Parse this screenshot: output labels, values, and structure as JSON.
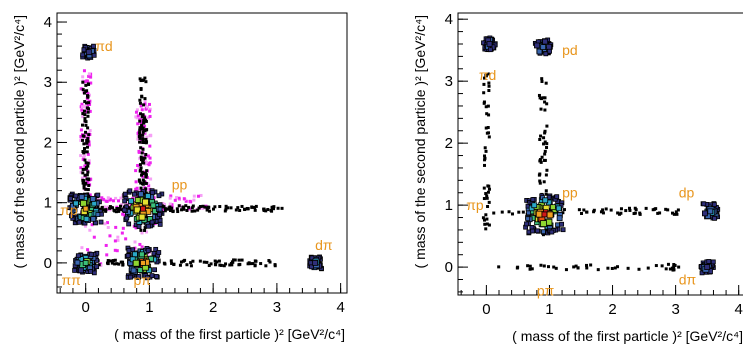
{
  "chart_data": [
    {
      "type": "heatmap",
      "xlabel": "( mass of the first particle )",
      "ylabel": "( mass of the second particle )",
      "unit_label": "[GeV²/c⁴]",
      "xlim": [
        -0.45,
        4.1
      ],
      "ylim": [
        -0.5,
        4.15
      ],
      "x_ticks": [
        "0",
        "1",
        "2",
        "3",
        "4"
      ],
      "y_ticks": [
        "0",
        "1",
        "2",
        "3",
        "4"
      ],
      "labels": [
        {
          "text": "πd",
          "x": 0.15,
          "y": 3.6
        },
        {
          "text": "pp",
          "x": 1.35,
          "y": 1.3
        },
        {
          "text": "πp",
          "x": -0.4,
          "y": 0.88
        },
        {
          "text": "dπ",
          "x": 3.6,
          "y": 0.3
        },
        {
          "text": "ππ",
          "x": -0.38,
          "y": -0.28
        },
        {
          "text": "pπ",
          "x": 0.75,
          "y": -0.28
        }
      ],
      "clusters": [
        {
          "x": 0.9,
          "y": 0.9,
          "weight": 10
        },
        {
          "x": 0.0,
          "y": 0.9,
          "weight": 8
        },
        {
          "x": 0.9,
          "y": 0.0,
          "weight": 8
        },
        {
          "x": 0.0,
          "y": 0.0,
          "weight": 5
        },
        {
          "x": 0.05,
          "y": 3.5,
          "weight": 2
        },
        {
          "x": 3.6,
          "y": 0.0,
          "weight": 2
        }
      ]
    },
    {
      "type": "heatmap",
      "xlabel": "( mass of the first particle )",
      "ylabel": "( mass of the second particle )",
      "unit_label": "[GeV²/c⁴]",
      "xlim": [
        -0.45,
        4.1
      ],
      "ylim": [
        -0.45,
        4.1
      ],
      "x_ticks": [
        "0",
        "1",
        "2",
        "3",
        "4"
      ],
      "y_ticks": [
        "0",
        "1",
        "2",
        "3",
        "4"
      ],
      "labels": [
        {
          "text": "πd",
          "x": -0.12,
          "y": 3.1
        },
        {
          "text": "pd",
          "x": 1.2,
          "y": 3.5
        },
        {
          "text": "πp",
          "x": -0.32,
          "y": 1.0
        },
        {
          "text": "pp",
          "x": 1.2,
          "y": 1.2
        },
        {
          "text": "dp",
          "x": 3.05,
          "y": 1.2
        },
        {
          "text": "dπ",
          "x": 3.05,
          "y": -0.2
        },
        {
          "text": "pπ",
          "x": 0.8,
          "y": -0.38
        }
      ],
      "clusters": [
        {
          "x": 0.92,
          "y": 0.85,
          "weight": 10
        },
        {
          "x": 0.9,
          "y": 3.55,
          "weight": 3
        },
        {
          "x": 0.05,
          "y": 3.6,
          "weight": 2
        },
        {
          "x": 3.55,
          "y": 0.9,
          "weight": 3
        },
        {
          "x": 3.5,
          "y": 0.0,
          "weight": 2
        }
      ]
    }
  ]
}
